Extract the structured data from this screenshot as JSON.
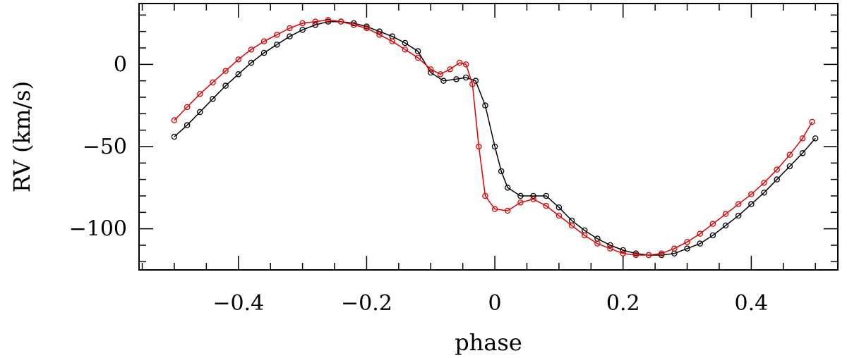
{
  "chart_data": {
    "type": "scatter",
    "title": "",
    "xlabel": "phase",
    "ylabel": "RV  (km/s)",
    "xlim": [
      -0.555,
      0.535
    ],
    "ylim": [
      -125,
      37
    ],
    "grid": false,
    "x_ticks": [
      -0.4,
      -0.2,
      0,
      0.2,
      0.4
    ],
    "x_tick_labels": [
      "−0.4",
      "−0.2",
      "0",
      "0.2",
      "0.4"
    ],
    "y_ticks": [
      0,
      -50,
      -100
    ],
    "y_tick_labels": [
      "0",
      "−50",
      "−100"
    ],
    "series": [
      {
        "color": "#000000",
        "marker": "open-circle",
        "points": [
          [
            -0.5,
            -44
          ],
          [
            -0.48,
            -37
          ],
          [
            -0.46,
            -29
          ],
          [
            -0.44,
            -21
          ],
          [
            -0.42,
            -13
          ],
          [
            -0.4,
            -6
          ],
          [
            -0.38,
            1
          ],
          [
            -0.36,
            7
          ],
          [
            -0.34,
            12
          ],
          [
            -0.32,
            17
          ],
          [
            -0.3,
            21
          ],
          [
            -0.28,
            24
          ],
          [
            -0.26,
            26
          ],
          [
            -0.24,
            26
          ],
          [
            -0.22,
            25
          ],
          [
            -0.2,
            23
          ],
          [
            -0.18,
            20
          ],
          [
            -0.16,
            17
          ],
          [
            -0.14,
            13
          ],
          [
            -0.12,
            8
          ],
          [
            -0.1,
            -5
          ],
          [
            -0.08,
            -10
          ],
          [
            -0.06,
            -9
          ],
          [
            -0.045,
            -8
          ],
          [
            -0.03,
            -10
          ],
          [
            -0.015,
            -25
          ],
          [
            0,
            -50
          ],
          [
            0.01,
            -65
          ],
          [
            0.02,
            -75
          ],
          [
            0.04,
            -80
          ],
          [
            0.06,
            -80
          ],
          [
            0.08,
            -80
          ],
          [
            0.1,
            -87
          ],
          [
            0.12,
            -95
          ],
          [
            0.14,
            -101
          ],
          [
            0.16,
            -106
          ],
          [
            0.18,
            -110
          ],
          [
            0.2,
            -113
          ],
          [
            0.22,
            -115
          ],
          [
            0.24,
            -116
          ],
          [
            0.26,
            -116
          ],
          [
            0.28,
            -115
          ],
          [
            0.3,
            -112
          ],
          [
            0.32,
            -109
          ],
          [
            0.34,
            -104
          ],
          [
            0.36,
            -98
          ],
          [
            0.38,
            -92
          ],
          [
            0.4,
            -85
          ],
          [
            0.42,
            -78
          ],
          [
            0.44,
            -70
          ],
          [
            0.46,
            -62
          ],
          [
            0.48,
            -54
          ],
          [
            0.5,
            -45
          ]
        ]
      },
      {
        "color": "#e00000",
        "marker": "open-circle",
        "points": [
          [
            -0.5,
            -34
          ],
          [
            -0.48,
            -26
          ],
          [
            -0.46,
            -18
          ],
          [
            -0.44,
            -11
          ],
          [
            -0.42,
            -4
          ],
          [
            -0.4,
            3
          ],
          [
            -0.38,
            9
          ],
          [
            -0.36,
            14
          ],
          [
            -0.34,
            18
          ],
          [
            -0.32,
            22
          ],
          [
            -0.3,
            25
          ],
          [
            -0.28,
            26
          ],
          [
            -0.26,
            27
          ],
          [
            -0.24,
            26
          ],
          [
            -0.22,
            24
          ],
          [
            -0.2,
            22
          ],
          [
            -0.18,
            18
          ],
          [
            -0.16,
            14
          ],
          [
            -0.14,
            9
          ],
          [
            -0.12,
            4
          ],
          [
            -0.1,
            -3
          ],
          [
            -0.085,
            -6
          ],
          [
            -0.07,
            -3
          ],
          [
            -0.055,
            1
          ],
          [
            -0.045,
            0
          ],
          [
            -0.035,
            -12
          ],
          [
            -0.025,
            -50
          ],
          [
            -0.015,
            -80
          ],
          [
            0,
            -88
          ],
          [
            0.02,
            -89
          ],
          [
            0.04,
            -84
          ],
          [
            0.06,
            -82
          ],
          [
            0.08,
            -86
          ],
          [
            0.1,
            -92
          ],
          [
            0.12,
            -98
          ],
          [
            0.14,
            -104
          ],
          [
            0.16,
            -109
          ],
          [
            0.18,
            -112
          ],
          [
            0.2,
            -115
          ],
          [
            0.22,
            -116
          ],
          [
            0.24,
            -116
          ],
          [
            0.26,
            -115
          ],
          [
            0.28,
            -112
          ],
          [
            0.3,
            -108
          ],
          [
            0.32,
            -103
          ],
          [
            0.34,
            -97
          ],
          [
            0.36,
            -91
          ],
          [
            0.38,
            -85
          ],
          [
            0.4,
            -79
          ],
          [
            0.42,
            -72
          ],
          [
            0.44,
            -64
          ],
          [
            0.46,
            -55
          ],
          [
            0.48,
            -45
          ],
          [
            0.495,
            -35
          ]
        ]
      }
    ]
  }
}
